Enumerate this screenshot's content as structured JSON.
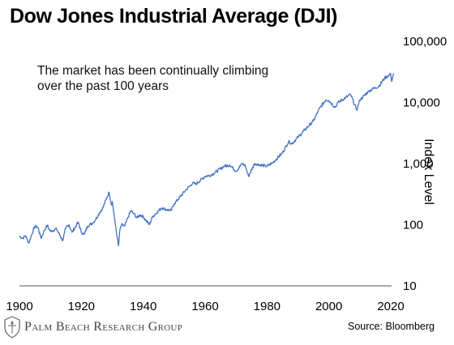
{
  "title": "Dow Jones Industrial Average (DJI)",
  "annotation": "The market has been continually climbing over the past 100 years",
  "source": "Source: Bloomberg",
  "logo_text": "Palm Beach Research Group",
  "chart_data": {
    "type": "line",
    "title": "Dow Jones Industrial Average (DJI)",
    "ylabel": "Index Level",
    "xlabel": "",
    "y_scale": "log",
    "xlim": [
      1900,
      2020
    ],
    "ylim": [
      10,
      100000
    ],
    "x_ticks": [
      1900,
      1920,
      1940,
      1960,
      1980,
      2000,
      2020
    ],
    "x_tick_labels": [
      "1900",
      "1920",
      "1940",
      "1960",
      "1980",
      "2000",
      "2020"
    ],
    "y_ticks": [
      10,
      100,
      1000,
      10000,
      100000
    ],
    "y_tick_labels": [
      "10",
      "100",
      "1,000",
      "10,000",
      "100,000"
    ],
    "line_color": "#4472c4",
    "grid": false,
    "series": [
      {
        "name": "",
        "x": [
          1900,
          1901,
          1902,
          1903,
          1904,
          1905,
          1906,
          1907,
          1908,
          1909,
          1910,
          1912,
          1914,
          1915,
          1916,
          1917,
          1919,
          1920,
          1921,
          1922,
          1924,
          1926,
          1927,
          1928,
          1929,
          1929.75,
          1930,
          1931,
          1932,
          1932.5,
          1933,
          1934,
          1936,
          1937,
          1938,
          1939,
          1940,
          1942,
          1943,
          1946,
          1947,
          1949,
          1950,
          1954,
          1956,
          1957,
          1960,
          1962,
          1966,
          1968,
          1970,
          1972,
          1973,
          1974,
          1976,
          1980,
          1982,
          1985,
          1987,
          1988,
          1990,
          1995,
          1997,
          1999,
          2000,
          2002,
          2003,
          2007,
          2009,
          2010,
          2013,
          2015,
          2016,
          2018,
          2019,
          2020,
          2020.3,
          2020.9
        ],
        "values": [
          65,
          60,
          66,
          50,
          70,
          95,
          90,
          60,
          80,
          98,
          78,
          85,
          55,
          90,
          100,
          75,
          110,
          75,
          70,
          95,
          110,
          160,
          190,
          260,
          340,
          210,
          240,
          100,
          45,
          85,
          100,
          95,
          170,
          150,
          130,
          145,
          135,
          100,
          135,
          190,
          180,
          170,
          220,
          380,
          480,
          460,
          620,
          650,
          900,
          950,
          750,
          1000,
          920,
          620,
          1000,
          900,
          1050,
          1500,
          2300,
          2100,
          2700,
          5000,
          8000,
          11000,
          10800,
          8300,
          10000,
          13500,
          7500,
          11000,
          15500,
          17500,
          18000,
          25000,
          27000,
          29000,
          22000,
          30000
        ]
      }
    ]
  }
}
